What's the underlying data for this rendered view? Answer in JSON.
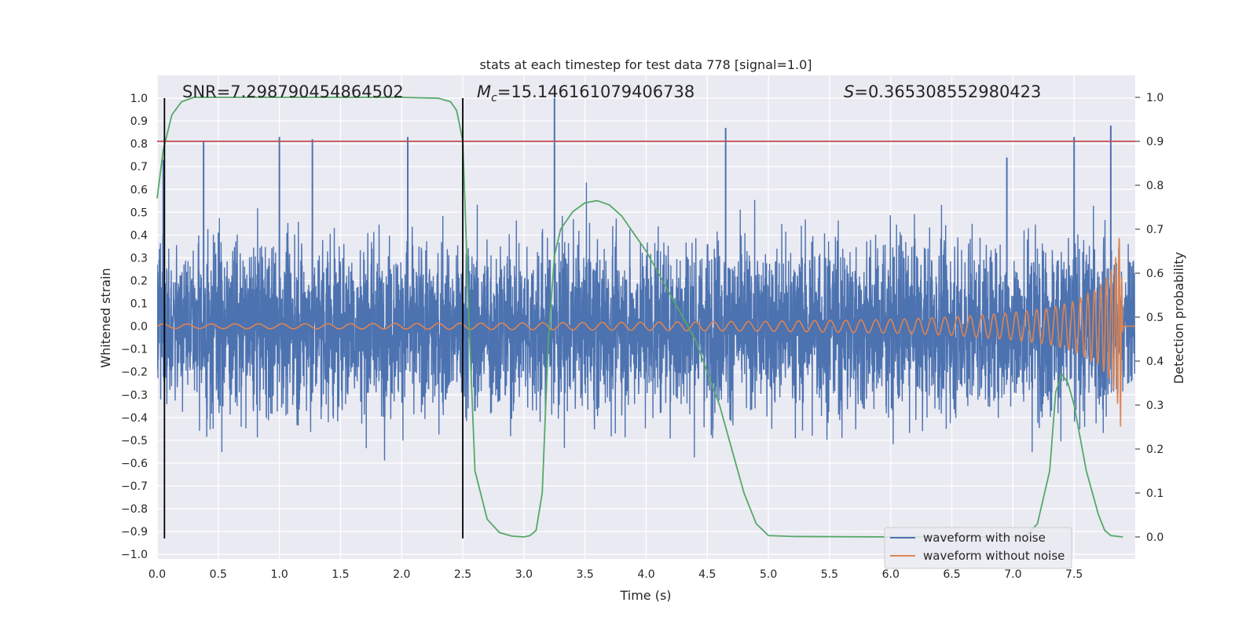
{
  "chart_data": {
    "type": "line",
    "title": "stats at each timestep for test data 778 [signal=1.0]",
    "xlabel": "Time (s)",
    "ylabel": "Whitened strain",
    "ylabel_right": "Detection probability",
    "xlim": [
      0,
      8
    ],
    "ylim": [
      -1.02,
      1.1
    ],
    "ylim_right": [
      -0.05,
      1.05
    ],
    "x_ticks": [
      0.0,
      0.5,
      1.0,
      1.5,
      2.0,
      2.5,
      3.0,
      3.5,
      4.0,
      4.5,
      5.0,
      5.5,
      6.0,
      6.5,
      7.0,
      7.5
    ],
    "x_tick_labels": [
      "0.0",
      "0.5",
      "1.0",
      "1.5",
      "2.0",
      "2.5",
      "3.0",
      "3.5",
      "4.0",
      "4.5",
      "5.0",
      "5.5",
      "6.0",
      "6.5",
      "7.0",
      "7.5"
    ],
    "y_ticks": [
      -1.0,
      -0.9,
      -0.8,
      -0.7,
      -0.6,
      -0.5,
      -0.4,
      -0.3,
      -0.2,
      -0.1,
      0.0,
      0.1,
      0.2,
      0.3,
      0.4,
      0.5,
      0.6,
      0.7,
      0.8,
      0.9,
      1.0
    ],
    "y_tick_labels": [
      "−1.0",
      "−0.9",
      "−0.8",
      "−0.7",
      "−0.6",
      "−0.5",
      "−0.4",
      "−0.3",
      "−0.2",
      "−0.1",
      "0.0",
      "0.1",
      "0.2",
      "0.3",
      "0.4",
      "0.5",
      "0.6",
      "0.7",
      "0.8",
      "0.9",
      "1.0"
    ],
    "y_ticks_right": [
      0.0,
      0.1,
      0.2,
      0.3,
      0.4,
      0.5,
      0.6,
      0.7,
      0.8,
      0.9,
      1.0
    ],
    "y_tick_labels_right": [
      "0.0",
      "0.1",
      "0.2",
      "0.3",
      "0.4",
      "0.5",
      "0.6",
      "0.7",
      "0.8",
      "0.9",
      "1.0"
    ],
    "grid": true,
    "legend_placement": "lower-right",
    "series": [
      {
        "name": "waveform with noise",
        "color": "#4c72b0",
        "description_values": "dense noisy strain between about -0.92 and 1.0",
        "envelope_x": [
          0.0,
          1.0,
          2.0,
          3.0,
          4.0,
          5.0,
          6.0,
          7.0,
          7.5,
          7.85,
          7.9,
          8.0
        ],
        "envelope_y": [
          0.42,
          0.42,
          0.42,
          0.42,
          0.42,
          0.42,
          0.42,
          0.42,
          0.44,
          0.45,
          0.3,
          0.42
        ],
        "peak_x": [
          0.05,
          0.38,
          1.0,
          1.27,
          2.05,
          3.25,
          4.65,
          6.95,
          7.5,
          7.8
        ],
        "peak_y": [
          0.73,
          0.81,
          0.83,
          0.82,
          0.83,
          1.0,
          0.87,
          0.74,
          0.83,
          0.88
        ]
      },
      {
        "name": "waveform without noise",
        "color": "#dd8452",
        "description_values": "chirp signal with amplitude growing from 0.01 to 0.44 near 7.88 s",
        "amp_x": [
          0.0,
          2.0,
          4.0,
          5.0,
          6.0,
          6.5,
          7.0,
          7.3,
          7.5,
          7.7,
          7.8,
          7.85,
          7.88,
          7.9
        ],
        "amp_y": [
          0.01,
          0.012,
          0.018,
          0.022,
          0.03,
          0.04,
          0.06,
          0.08,
          0.11,
          0.17,
          0.24,
          0.32,
          0.44,
          0.0
        ]
      },
      {
        "name": "",
        "color": "#55a868",
        "axis": "right",
        "x": [
          0.0,
          0.05,
          0.12,
          0.2,
          0.3,
          0.5,
          1.0,
          1.5,
          2.0,
          2.3,
          2.4,
          2.45,
          2.5,
          2.55,
          2.6,
          2.7,
          2.8,
          2.9,
          3.0,
          3.05,
          3.1,
          3.15,
          3.2,
          3.25,
          3.3,
          3.4,
          3.5,
          3.6,
          3.7,
          3.8,
          4.0,
          4.2,
          4.4,
          4.6,
          4.7,
          4.8,
          4.9,
          5.0,
          5.2,
          6.0,
          6.5,
          7.0,
          7.1,
          7.2,
          7.3,
          7.35,
          7.4,
          7.45,
          7.5,
          7.6,
          7.7,
          7.75,
          7.8,
          7.9
        ],
        "y": [
          0.77,
          0.88,
          0.96,
          0.99,
          1.0,
          1.0,
          1.0,
          1.0,
          1.0,
          0.998,
          0.99,
          0.97,
          0.9,
          0.5,
          0.15,
          0.04,
          0.01,
          0.002,
          0.0,
          0.003,
          0.015,
          0.1,
          0.45,
          0.64,
          0.7,
          0.74,
          0.76,
          0.765,
          0.755,
          0.73,
          0.65,
          0.55,
          0.45,
          0.3,
          0.2,
          0.1,
          0.03,
          0.003,
          0.001,
          0.0,
          0.0,
          0.0,
          0.001,
          0.03,
          0.15,
          0.33,
          0.37,
          0.35,
          0.3,
          0.15,
          0.05,
          0.015,
          0.003,
          0.0
        ]
      }
    ],
    "threshold_line_right": {
      "value": 0.9,
      "color": "#c44e52"
    },
    "vertical_lines": [
      {
        "x": 0.06,
        "color": "#000000"
      },
      {
        "x": 2.5,
        "color": "#000000"
      }
    ],
    "annotations": [
      {
        "text": "SNR=7.298790454864502",
        "x_data": 0.2
      },
      {
        "text": "=15.146161079406738",
        "prefix": "M",
        "subscript": "c",
        "x_data": 2.6
      },
      {
        "text": "=0.365308552980423",
        "prefix": "S",
        "x_data": 5.6
      }
    ]
  }
}
